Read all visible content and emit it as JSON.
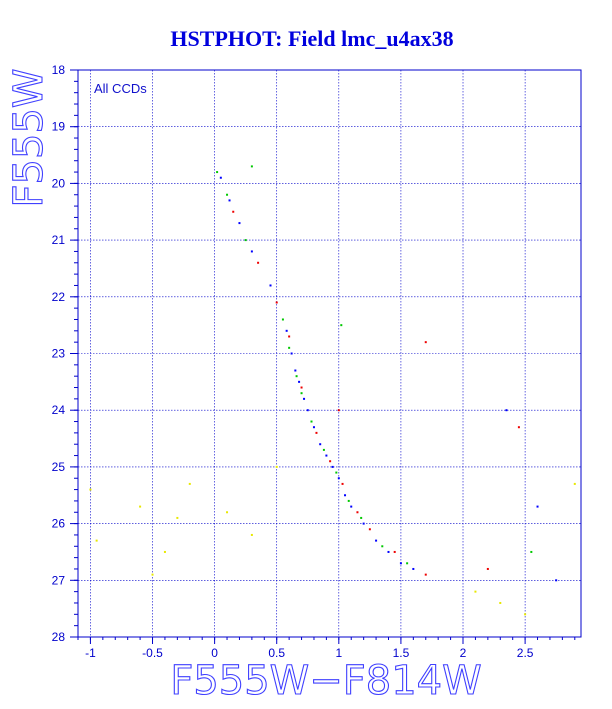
{
  "chart_data": {
    "type": "scatter",
    "title": "HSTPHOT: Field lmc_u4ax38",
    "xlabel": "F555W−F814W",
    "ylabel": "F555W",
    "annotation": "All CCDs",
    "xlim": [
      -1.1,
      2.95
    ],
    "ylim": [
      28,
      18
    ],
    "y_inverted": true,
    "grid": true,
    "x_ticks": [
      -1,
      -0.5,
      0,
      0.5,
      1,
      1.5,
      2,
      2.5
    ],
    "x_tick_labels": [
      "-1",
      "-0.5",
      "0",
      "0.5",
      "1",
      "1.5",
      "2",
      "2.5"
    ],
    "y_ticks": [
      18,
      19,
      20,
      21,
      22,
      23,
      24,
      25,
      26,
      27,
      28
    ],
    "y_tick_labels": [
      "18",
      "19",
      "20",
      "21",
      "22",
      "23",
      "24",
      "25",
      "26",
      "27",
      "28"
    ],
    "colors": {
      "grid": "#0000cc",
      "axis": "#0000cc",
      "title": "#0000dd",
      "series": [
        "#0000ff",
        "#00c800",
        "#ee0000",
        "#e8e800"
      ]
    },
    "series": [
      {
        "color": "#0000ff",
        "points": [
          [
            0.58,
            22.6
          ],
          [
            0.62,
            23.0
          ],
          [
            0.65,
            23.3
          ],
          [
            0.68,
            23.5
          ],
          [
            0.72,
            23.8
          ],
          [
            0.75,
            24.0
          ],
          [
            0.8,
            24.3
          ],
          [
            0.85,
            24.6
          ],
          [
            0.9,
            24.8
          ],
          [
            0.95,
            25.0
          ],
          [
            1.0,
            25.2
          ],
          [
            1.05,
            25.5
          ],
          [
            1.1,
            25.7
          ],
          [
            1.2,
            26.0
          ],
          [
            1.3,
            26.3
          ],
          [
            1.4,
            26.5
          ],
          [
            1.5,
            26.7
          ],
          [
            1.6,
            26.8
          ],
          [
            0.45,
            21.8
          ],
          [
            0.3,
            21.2
          ],
          [
            0.2,
            20.7
          ],
          [
            0.12,
            20.3
          ],
          [
            0.05,
            19.9
          ],
          [
            2.35,
            24.0
          ],
          [
            2.6,
            25.7
          ],
          [
            2.75,
            27.0
          ]
        ]
      },
      {
        "color": "#00c800",
        "points": [
          [
            0.55,
            22.4
          ],
          [
            0.6,
            22.9
          ],
          [
            0.66,
            23.4
          ],
          [
            0.7,
            23.7
          ],
          [
            0.78,
            24.2
          ],
          [
            0.88,
            24.7
          ],
          [
            0.98,
            25.1
          ],
          [
            1.08,
            25.6
          ],
          [
            1.18,
            25.9
          ],
          [
            1.35,
            26.4
          ],
          [
            1.55,
            26.7
          ],
          [
            0.25,
            21.0
          ],
          [
            0.1,
            20.2
          ],
          [
            0.02,
            19.8
          ],
          [
            0.3,
            19.7
          ],
          [
            1.02,
            22.5
          ],
          [
            2.55,
            26.5
          ]
        ]
      },
      {
        "color": "#ee0000",
        "points": [
          [
            0.5,
            22.1
          ],
          [
            0.6,
            22.7
          ],
          [
            0.7,
            23.6
          ],
          [
            0.82,
            24.4
          ],
          [
            0.93,
            24.9
          ],
          [
            1.03,
            25.3
          ],
          [
            1.15,
            25.8
          ],
          [
            1.25,
            26.1
          ],
          [
            1.45,
            26.5
          ],
          [
            1.7,
            26.9
          ],
          [
            0.35,
            21.4
          ],
          [
            0.15,
            20.5
          ],
          [
            1.0,
            24.0
          ],
          [
            1.7,
            22.8
          ],
          [
            2.2,
            26.8
          ],
          [
            2.45,
            24.3
          ]
        ]
      },
      {
        "color": "#e8e800",
        "points": [
          [
            -0.95,
            26.3
          ],
          [
            -0.6,
            25.7
          ],
          [
            -0.4,
            26.5
          ],
          [
            -0.3,
            25.9
          ],
          [
            -0.2,
            25.3
          ],
          [
            0.1,
            25.8
          ],
          [
            0.3,
            26.2
          ],
          [
            0.5,
            25.0
          ],
          [
            2.1,
            27.2
          ],
          [
            2.3,
            27.4
          ],
          [
            2.5,
            27.6
          ],
          [
            2.9,
            25.3
          ],
          [
            -1.0,
            25.4
          ],
          [
            -0.5,
            26.9
          ]
        ]
      }
    ]
  }
}
